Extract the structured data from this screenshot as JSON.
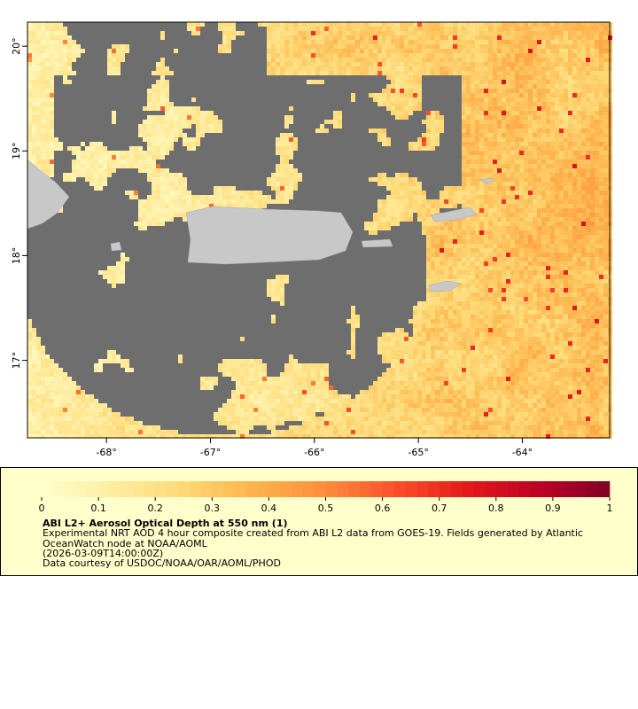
{
  "map": {
    "xticks": [
      {
        "value": -68,
        "label": "-68°"
      },
      {
        "value": -67,
        "label": "-67°"
      },
      {
        "value": -66,
        "label": "-66°"
      },
      {
        "value": -65,
        "label": "-65°"
      },
      {
        "value": -64,
        "label": "-64°"
      }
    ],
    "yticks": [
      {
        "value": 17,
        "label": "17°"
      },
      {
        "value": 18,
        "label": "18°"
      },
      {
        "value": 19,
        "label": "19°"
      },
      {
        "value": 20,
        "label": "20°"
      }
    ],
    "xlim": [
      -68.76,
      -63.16
    ],
    "ylim": [
      16.26,
      20.23
    ]
  },
  "colorbar": {
    "lim": [
      0,
      1
    ],
    "ticks": [
      0,
      0.1,
      0.2,
      0.3,
      0.4,
      0.5,
      0.6,
      0.7,
      0.8,
      0.9,
      1
    ],
    "colormap": [
      "#ffffcc",
      "#ffeda0",
      "#fed976",
      "#feb24c",
      "#fd8d3c",
      "#fc4e2a",
      "#e31a1c",
      "#bd0026",
      "#800026"
    ]
  },
  "legend": {
    "title": "ABI L2+ Aerosol Optical Depth at 550 nm (1)",
    "lines": [
      "Experimental NRT AOD 4 hour composite created from ABI L2 data from GOES-19. Fields generated by Atlantic",
      "OceanWatch node at NOAA/AOML",
      "(2026-03-09T14:00:00Z)",
      "Data courtesy of USDOC/NOAA/OAR/AOML/PHOD"
    ]
  }
}
